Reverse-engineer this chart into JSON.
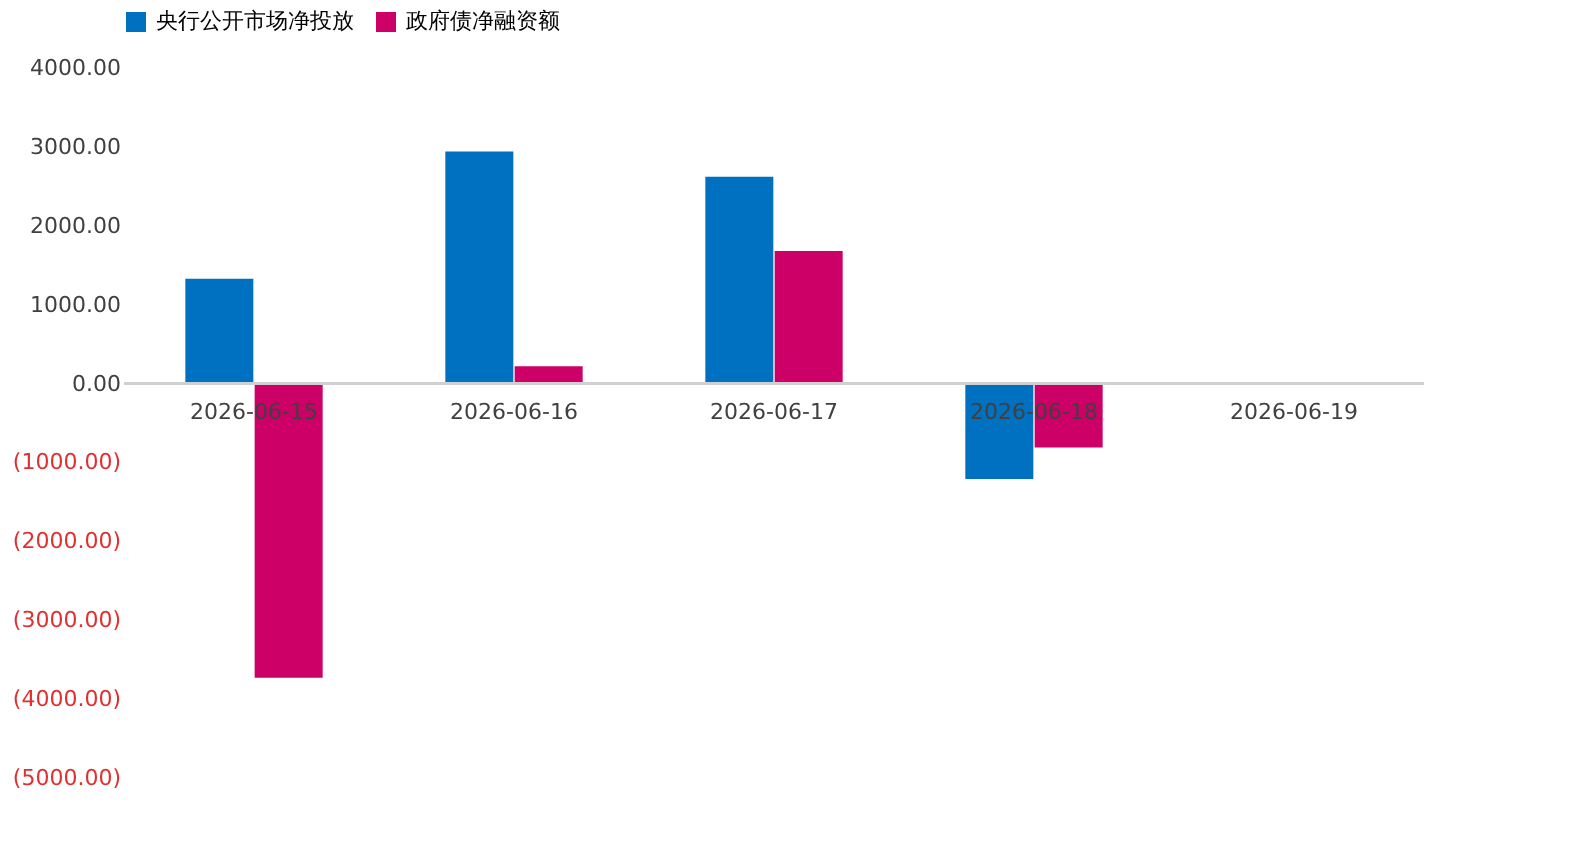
{
  "chart_data": {
    "type": "bar",
    "categories": [
      "2026-06-15",
      "2026-06-16",
      "2026-06-17",
      "2026-06-18",
      "2026-06-19"
    ],
    "series": [
      {
        "name": "央行公开市场净投放",
        "color": "#0070c0",
        "values": [
          1330,
          2940,
          2620,
          -1210,
          null
        ]
      },
      {
        "name": "政府债净融资额",
        "color": "#cc0066",
        "values": [
          -3730,
          220,
          1680,
          -810,
          null
        ]
      }
    ],
    "ylim": [
      -5000,
      4000
    ],
    "yticks": [
      {
        "value": 4000,
        "label": "4000.00"
      },
      {
        "value": 3000,
        "label": "3000.00"
      },
      {
        "value": 2000,
        "label": "2000.00"
      },
      {
        "value": 1000,
        "label": "1000.00"
      },
      {
        "value": 0,
        "label": "0.00"
      },
      {
        "value": -1000,
        "label": "(1000.00)"
      },
      {
        "value": -2000,
        "label": "(2000.00)"
      },
      {
        "value": -3000,
        "label": "(3000.00)"
      },
      {
        "value": -4000,
        "label": "(4000.00)"
      },
      {
        "value": -5000,
        "label": "(5000.00)"
      }
    ],
    "grid": false,
    "legend": "top"
  }
}
